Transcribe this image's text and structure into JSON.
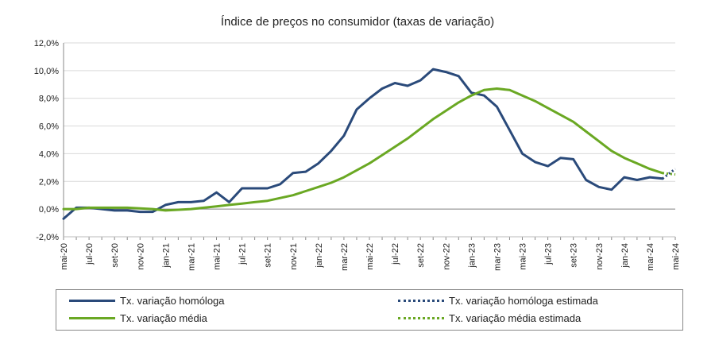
{
  "chart_data": {
    "type": "line",
    "title": "Índice de preços no consumidor  (taxas  de variação)",
    "xlabel": "",
    "ylabel": "",
    "ylim": [
      -2,
      12
    ],
    "yticks": [
      "-2,0%",
      "0,0%",
      "2,0%",
      "4,0%",
      "6,0%",
      "8,0%",
      "10,0%",
      "12,0%"
    ],
    "tick_labels": [
      "mai-20",
      "jul-20",
      "set-20",
      "nov-20",
      "jan-21",
      "mar-21",
      "mai-21",
      "jul-21",
      "set-21",
      "nov-21",
      "jan-22",
      "mar-22",
      "mai-22",
      "jul-22",
      "set-22",
      "nov-22",
      "jan-23",
      "mar-23",
      "mai-23",
      "jul-23",
      "set-23",
      "nov-23",
      "jan-24",
      "mar-24",
      "mai-24"
    ],
    "x_start": "mai-20",
    "grid": "horizontal",
    "series": [
      {
        "name": "Tx. variação homóloga",
        "color": "#2a4a7a",
        "style": "solid",
        "values": [
          -0.7,
          0.1,
          0.1,
          0.0,
          -0.1,
          -0.1,
          -0.2,
          -0.2,
          0.3,
          0.5,
          0.5,
          0.6,
          1.2,
          0.5,
          1.5,
          1.5,
          1.5,
          1.8,
          2.6,
          2.7,
          3.3,
          4.2,
          5.3,
          7.2,
          8.0,
          8.7,
          9.1,
          8.9,
          9.3,
          10.1,
          9.9,
          9.6,
          8.4,
          8.2,
          7.4,
          5.7,
          4.0,
          3.4,
          3.1,
          3.7,
          3.6,
          2.1,
          1.6,
          1.4,
          2.3,
          2.1,
          2.3,
          2.2
        ]
      },
      {
        "name": "Tx. variação homóloga estimada",
        "color": "#2a4a7a",
        "style": "dotted",
        "start_index": 47,
        "values": [
          2.2,
          2.9
        ]
      },
      {
        "name": "Tx. variação média",
        "color": "#6aa823",
        "style": "solid",
        "values": [
          0.0,
          0.0,
          0.1,
          0.1,
          0.1,
          0.1,
          0.05,
          0.0,
          -0.1,
          -0.05,
          0.0,
          0.1,
          0.2,
          0.3,
          0.4,
          0.5,
          0.6,
          0.8,
          1.0,
          1.3,
          1.6,
          1.9,
          2.3,
          2.8,
          3.3,
          3.9,
          4.5,
          5.1,
          5.8,
          6.5,
          7.1,
          7.7,
          8.2,
          8.6,
          8.7,
          8.6,
          8.2,
          7.8,
          7.3,
          6.8,
          6.3,
          5.6,
          4.9,
          4.2,
          3.7,
          3.3,
          2.9,
          2.6
        ]
      },
      {
        "name": "Tx. variação média  estimada",
        "color": "#6aa823",
        "style": "dotted",
        "start_index": 47,
        "values": [
          2.6,
          2.5
        ]
      }
    ]
  }
}
